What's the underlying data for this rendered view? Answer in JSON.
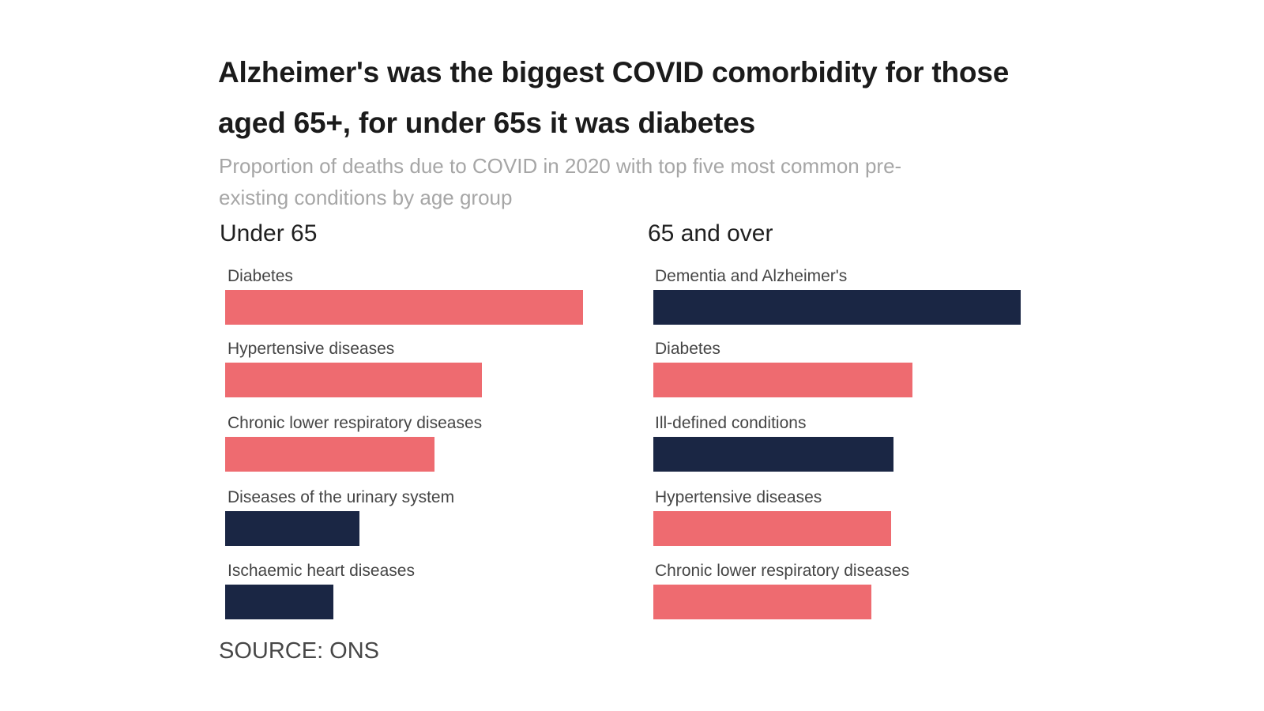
{
  "header": {
    "title_lines": [
      "Alzheimer's was the biggest COVID comorbidity for those",
      "aged 65+, for under 65s it was diabetes"
    ],
    "subtitle_lines": [
      "Proportion of deaths due to COVID in 2020 with top five most common pre-",
      "existing conditions by age group"
    ]
  },
  "footer": {
    "source": "SOURCE: ONS"
  },
  "colors": {
    "salmon": "#ee6b70",
    "navy": "#1a2644",
    "background": "#ffffff",
    "title_text": "#1b1b1b",
    "subtitle_text": "#a6a6a6",
    "heading_text": "#202020",
    "label_text": "#454545",
    "source_text": "#474747"
  },
  "chart_data": {
    "type": "bar",
    "orientation": "horizontal",
    "title": "Alzheimer's was the biggest COVID comorbidity for those aged 65+, for under 65s it was diabetes",
    "subtitle": "Proportion of deaths due to COVID in 2020 with top five most common pre-existing conditions by age group",
    "source": "SOURCE: ONS",
    "legend": "none",
    "value_axis": "none shown — no numeric axis, gridlines or data labels; values are relative bar lengths with the longest bar in each panel = 100",
    "groups": [
      {
        "group_title": "Under 65",
        "categories": [
          "Diabetes",
          "Hypertensive diseases",
          "Chronic lower respiratory diseases",
          "Diseases of the urinary system",
          "Ischaemic heart diseases"
        ],
        "values": [
          100,
          71.7,
          58.5,
          37.5,
          30.2
        ],
        "bar_colors": [
          "salmon",
          "salmon",
          "salmon",
          "navy",
          "navy"
        ]
      },
      {
        "group_title": "65 and over",
        "categories": [
          "Dementia and Alzheimer's",
          "Diabetes",
          "Ill-defined conditions",
          "Hypertensive diseases",
          "Chronic lower respiratory diseases"
        ],
        "values": [
          100,
          70.5,
          65.4,
          64.7,
          59.4
        ],
        "bar_colors": [
          "navy",
          "salmon",
          "navy",
          "salmon",
          "salmon"
        ]
      }
    ]
  }
}
